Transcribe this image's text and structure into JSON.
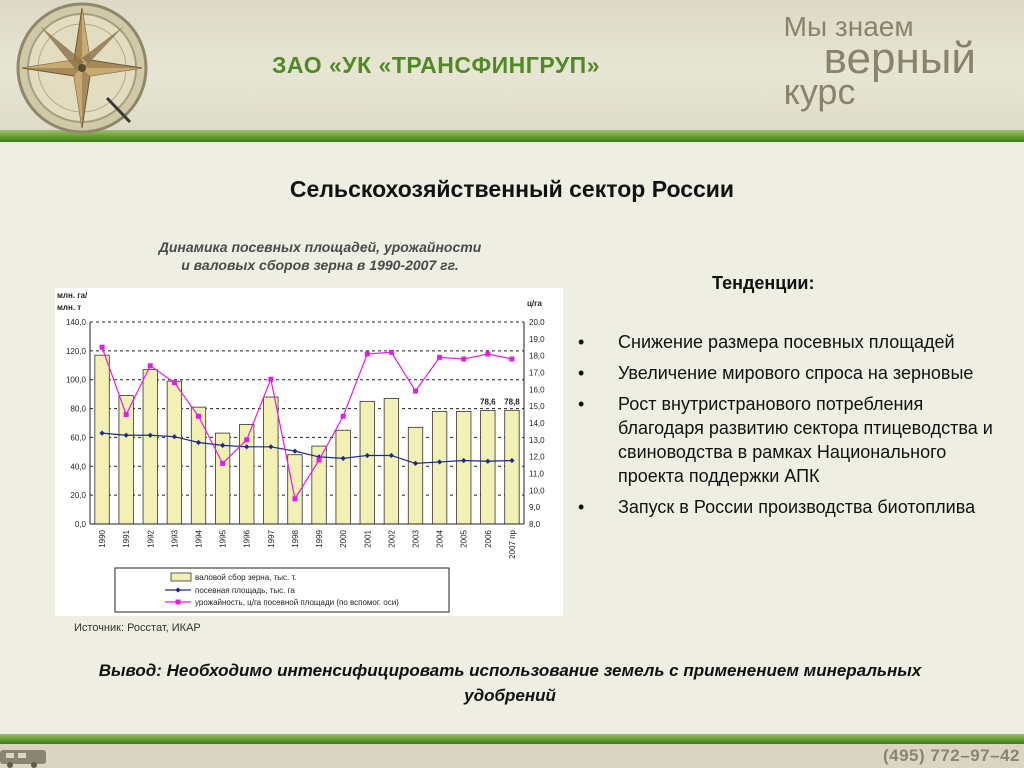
{
  "header": {
    "company": "ЗАО «УК «ТРАНСФИНГРУП»",
    "slogan_line1": "Мы знаем",
    "slogan_line2": "верный",
    "slogan_line3": "курс"
  },
  "slide": {
    "title": "Сельскохозяйственный сектор России",
    "chart_caption_line1": "Динамика посевных площадей, урожайности",
    "chart_caption_line2": "и валовых сборов зерна в 1990-2007 гг.",
    "source": "Источник: Росстат, ИКАР",
    "trends_title": "Тенденции:",
    "trends": [
      "Снижение размера посевных площадей",
      "Увеличение мирового спроса на зерновые",
      "Рост внутристранового потребления благодаря развитию сектора птицеводства и свиноводства в рамках Национального проекта поддержки АПК",
      "Запуск в России производства биотоплива"
    ],
    "conclusion_label": "Вывод",
    "conclusion_text": ": Необходимо интенсифицировать использование земель с применением минеральных удобрений"
  },
  "footer": {
    "phone": "(495) 772–97–42"
  },
  "colors": {
    "brand_green": "#4f8a25",
    "bar_fill": "#f2f0b4",
    "area_line": "#1b2a8c",
    "yield_line": "#e020e0"
  },
  "chart_data": {
    "type": "bar",
    "categories": [
      "1990",
      "1991",
      "1992",
      "1993",
      "1994",
      "1995",
      "1996",
      "1997",
      "1998",
      "1999",
      "2000",
      "2001",
      "2002",
      "2003",
      "2004",
      "2005",
      "2006",
      "2007 пр"
    ],
    "left_axis_label_line1": "млн. га/",
    "left_axis_label_line2": "млн. т",
    "right_axis_label": "ц/га",
    "ylim": [
      0,
      140
    ],
    "y2lim": [
      8,
      20
    ],
    "y_ticks": [
      "0,0",
      "20,0",
      "40,0",
      "60,0",
      "80,0",
      "100,0",
      "120,0",
      "140,0"
    ],
    "y2_ticks": [
      "8,0",
      "9,0",
      "10,0",
      "11,0",
      "12,0",
      "13,0",
      "14,0",
      "15,0",
      "16,0",
      "17,0",
      "18,0",
      "19,0",
      "20,0"
    ],
    "grid": true,
    "series": [
      {
        "name": "валовой сбор зерна, тыс. т.",
        "type": "bar",
        "values": [
          117,
          89,
          107,
          99,
          81,
          63,
          69,
          88,
          48,
          54,
          65,
          85,
          87,
          67,
          78,
          78,
          78.6,
          78.8
        ]
      },
      {
        "name": "посевная площадь, тыс. га",
        "type": "line",
        "values": [
          63,
          61.5,
          61.5,
          60.5,
          56.5,
          54.5,
          53.5,
          53.5,
          50.5,
          46.5,
          45.5,
          47.5,
          47.5,
          42,
          43,
          44,
          43.5,
          44
        ]
      },
      {
        "name": "урожайность, ц/га посевной площади (по вспомог. оси)",
        "type": "line",
        "axis": "secondary",
        "values": [
          18.5,
          14.5,
          17.4,
          16.4,
          14.4,
          11.6,
          13.0,
          16.6,
          9.5,
          11.8,
          14.4,
          18.1,
          18.2,
          15.9,
          17.9,
          17.8,
          18.1,
          17.8
        ]
      }
    ],
    "data_labels": [
      {
        "category": "2006",
        "text": "78,6"
      },
      {
        "category": "2007 пр",
        "text": "78,8"
      }
    ],
    "legend_placement": "bottom"
  }
}
